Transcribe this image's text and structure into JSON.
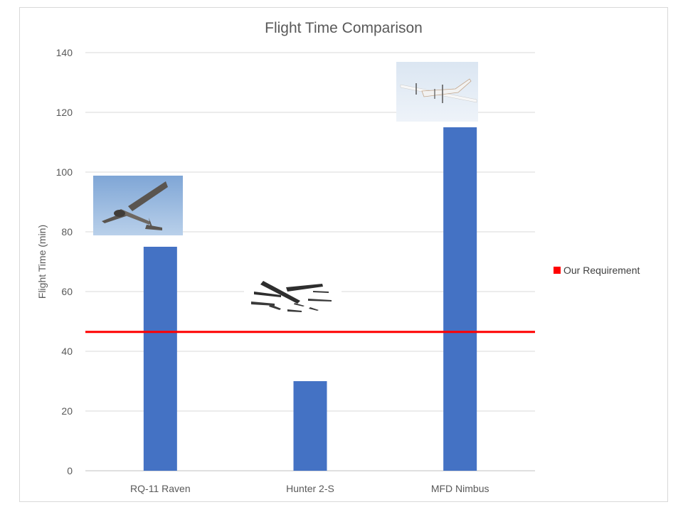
{
  "chart_data": {
    "type": "bar",
    "title": "Flight Time Comparison",
    "xlabel": "",
    "ylabel": "Flight Time (min)",
    "ylim": [
      0,
      140
    ],
    "yticks": [
      0,
      20,
      40,
      60,
      80,
      100,
      120,
      140
    ],
    "grid": true,
    "categories": [
      "RQ-11 Raven",
      "Hunter 2-S",
      "MFD Nimbus"
    ],
    "series": [
      {
        "values": [
          75,
          30,
          115
        ],
        "color": "#4472c4"
      }
    ],
    "reference_lines": [
      {
        "name": "Our Requirement",
        "value": 46.5,
        "color": "#ff0000"
      }
    ],
    "legend_position": "right",
    "bar_images": [
      "aircraft-photo",
      "aircraft-photo",
      "aircraft-photo"
    ]
  }
}
